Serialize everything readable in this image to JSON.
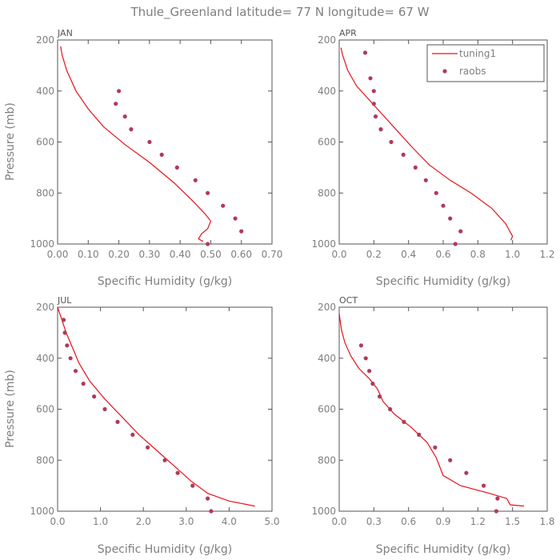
{
  "title": "Thule_Greenland  latitude= 77 N longitude= 67 W",
  "colors": {
    "model": "#e8111a",
    "obs": "#b03a5b",
    "axis": "#555555",
    "text": "#7f7f7f"
  },
  "legend": {
    "model_label": "tuning1",
    "obs_label": "raobs"
  },
  "chart_data": [
    {
      "type": "line",
      "panel": "JAN",
      "xlabel": "Specific Humidity (g/kg)",
      "ylabel": "Pressure (mb)",
      "xlim": [
        0,
        0.7
      ],
      "ylim": [
        200,
        1000
      ],
      "xticks": [
        "0.00",
        "0.10",
        "0.20",
        "0.30",
        "0.40",
        "0.50",
        "0.60",
        "0.70"
      ],
      "xtick_values": [
        0,
        0.1,
        0.2,
        0.3,
        0.4,
        0.5,
        0.6,
        0.7
      ],
      "yticks": [
        "200",
        "400",
        "600",
        "800",
        "1000"
      ],
      "ytick_values": [
        200,
        400,
        600,
        800,
        1000
      ],
      "series": [
        {
          "name": "tuning1",
          "kind": "line",
          "x": [
            0.01,
            0.015,
            0.03,
            0.06,
            0.1,
            0.15,
            0.22,
            0.3,
            0.38,
            0.44,
            0.48,
            0.5,
            0.49,
            0.47,
            0.46,
            0.475
          ],
          "y": [
            225,
            260,
            320,
            400,
            470,
            540,
            610,
            680,
            760,
            830,
            880,
            910,
            940,
            960,
            980,
            990
          ]
        },
        {
          "name": "raobs",
          "kind": "scatter",
          "x": [
            0.2,
            0.19,
            0.22,
            0.24,
            0.3,
            0.34,
            0.39,
            0.45,
            0.49,
            0.54,
            0.58,
            0.6,
            0.49
          ],
          "y": [
            400,
            450,
            500,
            550,
            600,
            650,
            700,
            750,
            800,
            850,
            900,
            950,
            1000
          ]
        }
      ]
    },
    {
      "type": "line",
      "panel": "APR",
      "xlabel": "Specific Humidity (g/kg)",
      "ylabel": "",
      "xlim": [
        0,
        1.2
      ],
      "ylim": [
        200,
        1000
      ],
      "xticks": [
        "0.0",
        "0.2",
        "0.4",
        "0.6",
        "0.8",
        "1.0",
        "1.2"
      ],
      "xtick_values": [
        0,
        0.2,
        0.4,
        0.6,
        0.8,
        1.0,
        1.2
      ],
      "yticks": [
        "200",
        "400",
        "600",
        "800",
        "1000"
      ],
      "ytick_values": [
        200,
        400,
        600,
        800,
        1000
      ],
      "legend_position": "top-right",
      "series": [
        {
          "name": "tuning1",
          "kind": "line",
          "x": [
            0.01,
            0.02,
            0.05,
            0.1,
            0.18,
            0.26,
            0.34,
            0.42,
            0.52,
            0.64,
            0.76,
            0.88,
            0.96,
            1.0,
            0.99
          ],
          "y": [
            230,
            260,
            320,
            380,
            440,
            500,
            560,
            620,
            690,
            750,
            800,
            860,
            920,
            970,
            985
          ]
        },
        {
          "name": "raobs",
          "kind": "scatter",
          "x": [
            0.15,
            0.18,
            0.2,
            0.2,
            0.21,
            0.24,
            0.3,
            0.37,
            0.44,
            0.5,
            0.56,
            0.6,
            0.64,
            0.7,
            0.67
          ],
          "y": [
            250,
            350,
            400,
            450,
            500,
            550,
            600,
            650,
            700,
            750,
            800,
            850,
            900,
            950,
            1000
          ]
        }
      ]
    },
    {
      "type": "line",
      "panel": "JUL",
      "xlabel": "Specific Humidity (g/kg)",
      "ylabel": "Pressure (mb)",
      "xlim": [
        0,
        5
      ],
      "ylim": [
        200,
        1000
      ],
      "xticks": [
        "0.0",
        "1.0",
        "2.0",
        "3.0",
        "4.0",
        "5.0"
      ],
      "xtick_values": [
        0,
        1,
        2,
        3,
        4,
        5
      ],
      "yticks": [
        "200",
        "400",
        "600",
        "800",
        "1000"
      ],
      "ytick_values": [
        200,
        400,
        600,
        800,
        1000
      ],
      "series": [
        {
          "name": "tuning1",
          "kind": "line",
          "x": [
            0.0,
            0.1,
            0.2,
            0.35,
            0.5,
            0.75,
            1.1,
            1.5,
            1.9,
            2.3,
            2.7,
            3.1,
            3.5,
            4.0,
            4.6
          ],
          "y": [
            200,
            250,
            300,
            360,
            420,
            490,
            560,
            630,
            700,
            760,
            820,
            880,
            930,
            960,
            980
          ]
        },
        {
          "name": "raobs",
          "kind": "scatter",
          "x": [
            0.14,
            0.17,
            0.22,
            0.3,
            0.42,
            0.6,
            0.85,
            1.1,
            1.4,
            1.75,
            2.1,
            2.5,
            2.8,
            3.15,
            3.5,
            3.58
          ],
          "y": [
            250,
            300,
            350,
            400,
            450,
            500,
            550,
            600,
            650,
            700,
            750,
            800,
            850,
            900,
            950,
            1000
          ]
        }
      ]
    },
    {
      "type": "line",
      "panel": "OCT",
      "xlabel": "Specific Humidity (g/kg)",
      "ylabel": "",
      "xlim": [
        0,
        1.8
      ],
      "ylim": [
        200,
        1000
      ],
      "xticks": [
        "0.0",
        "0.3",
        "0.6",
        "0.9",
        "1.2",
        "1.5",
        "1.8"
      ],
      "xtick_values": [
        0,
        0.3,
        0.6,
        0.9,
        1.2,
        1.5,
        1.8
      ],
      "yticks": [
        "200",
        "400",
        "600",
        "800",
        "1000"
      ],
      "ytick_values": [
        200,
        400,
        600,
        800,
        1000
      ],
      "series": [
        {
          "name": "tuning1",
          "kind": "line",
          "x": [
            0.0,
            0.02,
            0.05,
            0.1,
            0.17,
            0.26,
            0.33,
            0.38,
            0.48,
            0.62,
            0.76,
            0.84,
            0.9,
            1.05,
            1.3,
            1.45,
            1.48,
            1.6
          ],
          "y": [
            225,
            290,
            340,
            390,
            440,
            480,
            520,
            570,
            620,
            670,
            730,
            790,
            860,
            900,
            930,
            950,
            975,
            980
          ]
        },
        {
          "name": "raobs",
          "kind": "scatter",
          "x": [
            0.19,
            0.23,
            0.26,
            0.29,
            0.35,
            0.44,
            0.56,
            0.69,
            0.83,
            0.96,
            1.1,
            1.25,
            1.37,
            1.36
          ],
          "y": [
            350,
            400,
            450,
            500,
            550,
            600,
            650,
            700,
            750,
            800,
            850,
            900,
            950,
            1000
          ]
        }
      ]
    }
  ]
}
